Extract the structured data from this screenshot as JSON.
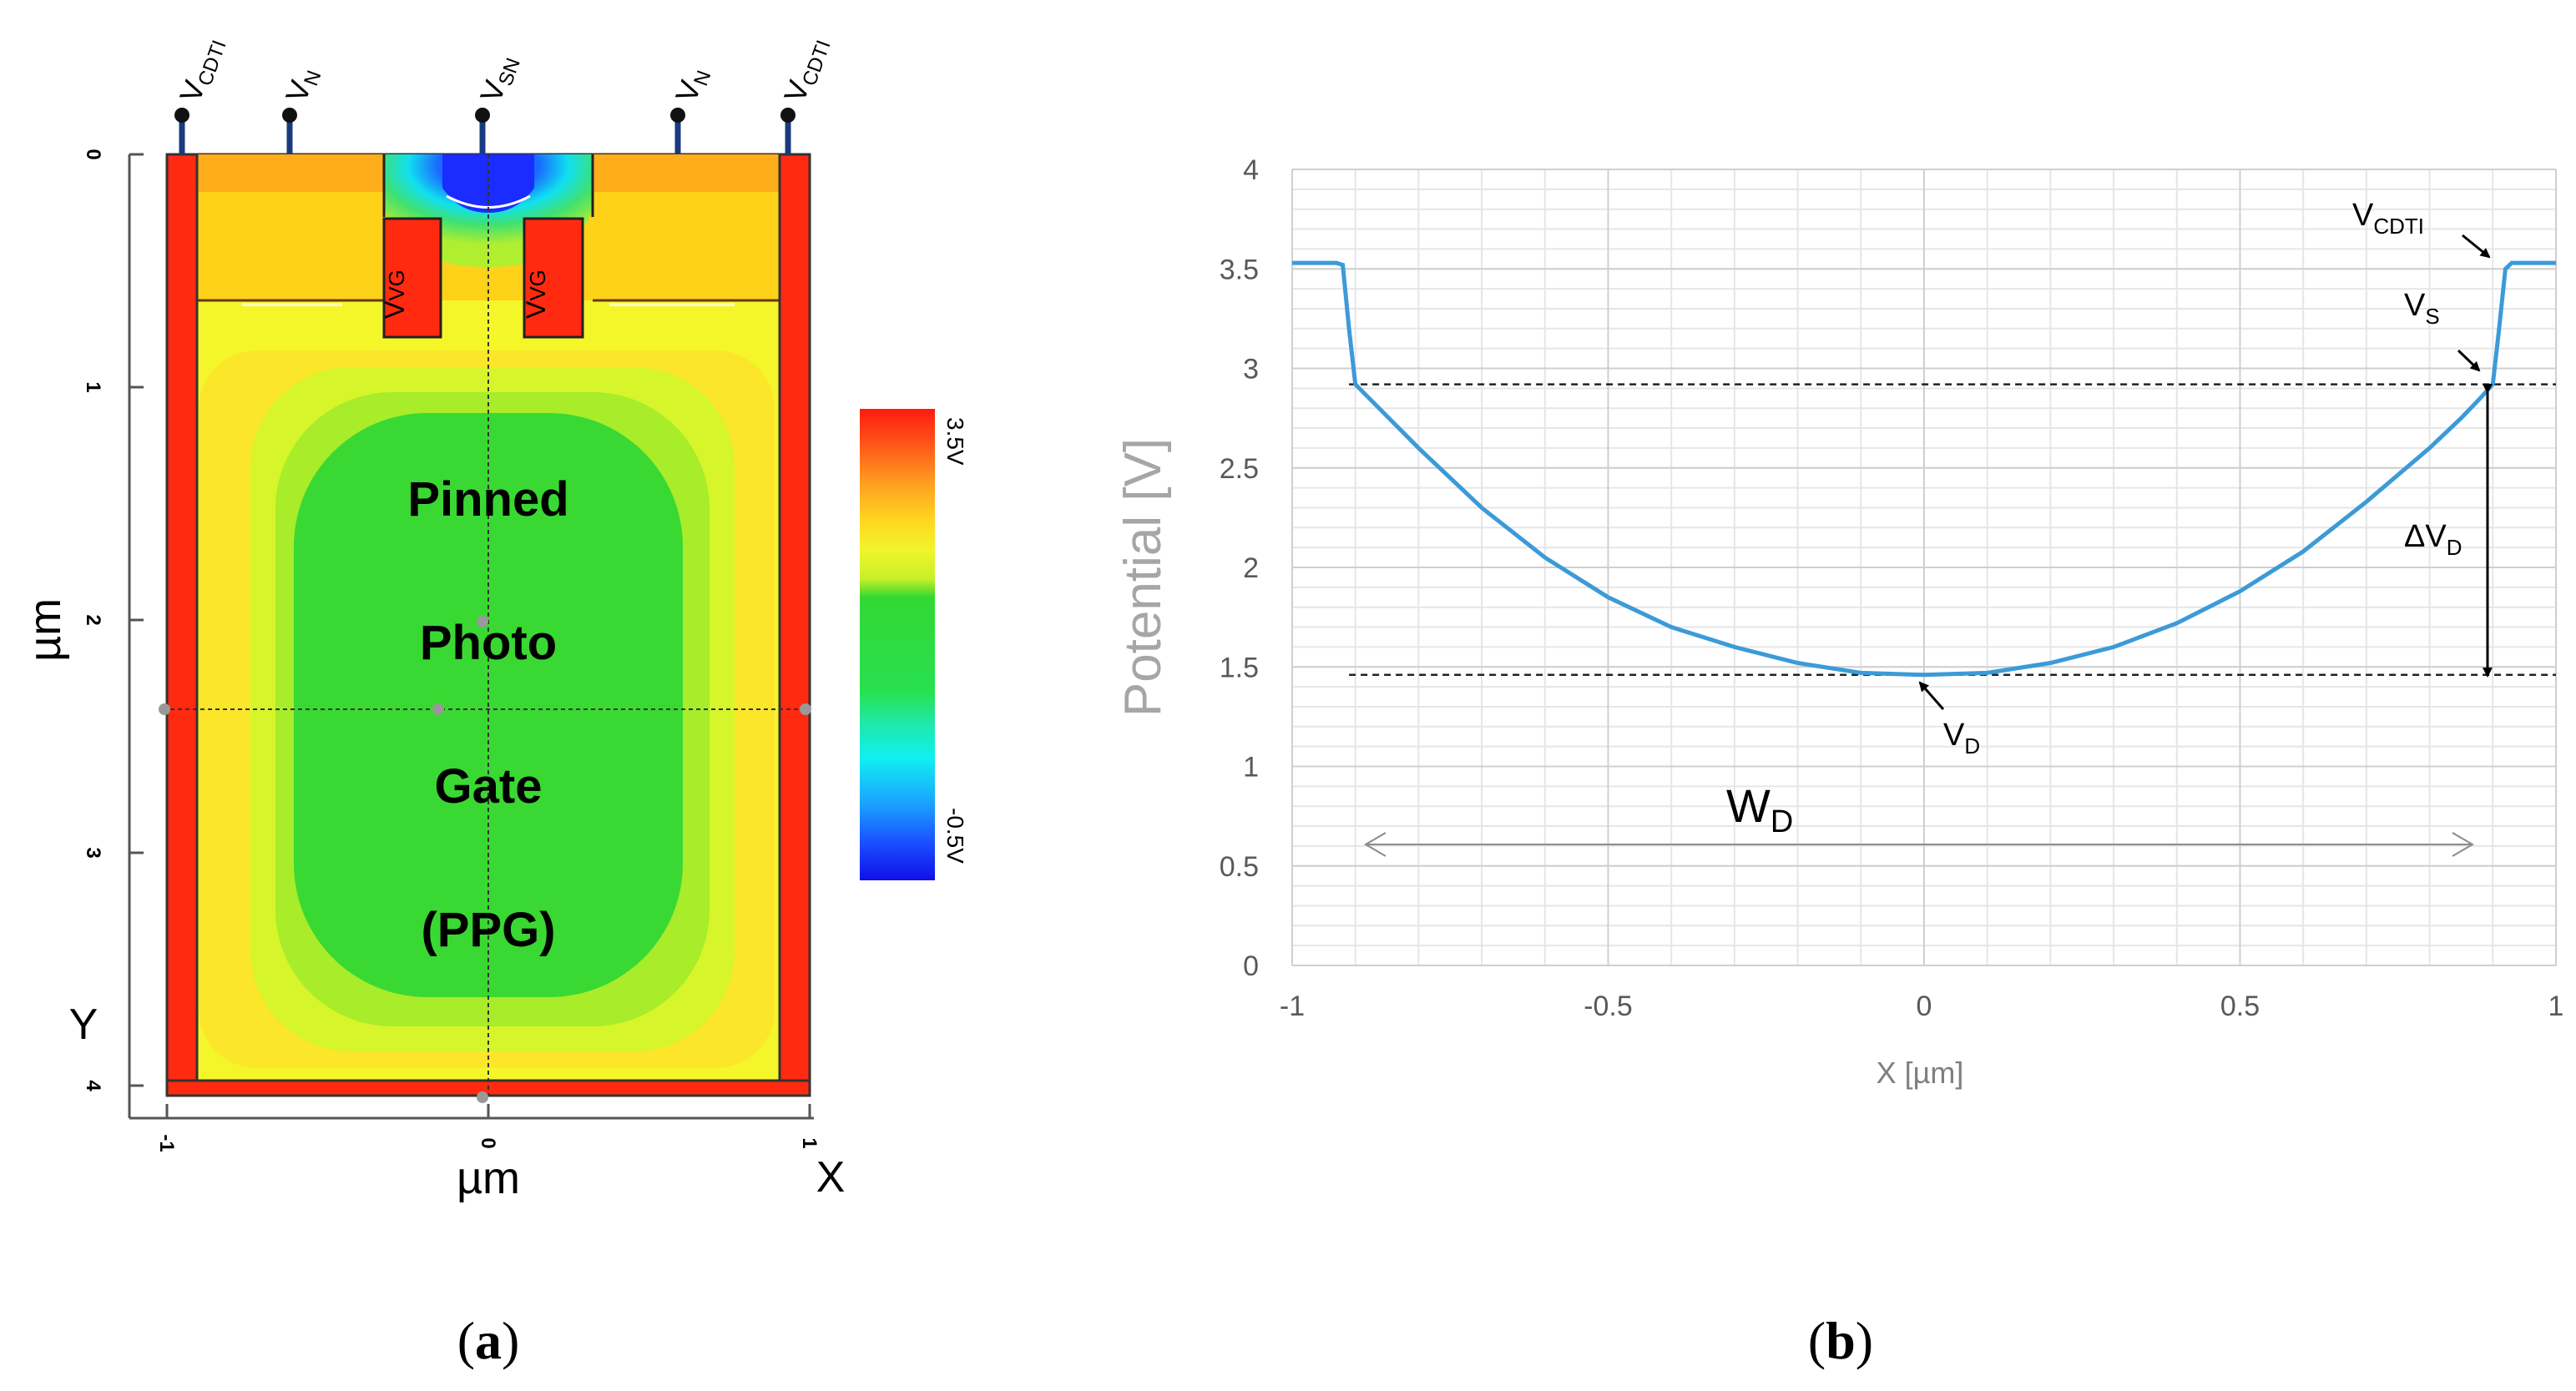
{
  "panel_a": {
    "caption_letter": "a",
    "region_label_lines": [
      "Pinned",
      "Photo",
      "Gate",
      "(PPG)"
    ],
    "y_axis_title": "µm",
    "y_axis_letter": "Y",
    "x_axis_title": "µm",
    "x_axis_letter": "X",
    "y_ticks": [
      "0",
      "1",
      "2",
      "3",
      "4"
    ],
    "x_ticks": [
      "-1",
      "0",
      "1"
    ],
    "contacts": [
      {
        "label": "V",
        "sub": "CDTI"
      },
      {
        "label": "V",
        "sub": "N"
      },
      {
        "label": "V",
        "sub": "SN"
      },
      {
        "label": "V",
        "sub": "N"
      },
      {
        "label": "V",
        "sub": "CDTI"
      }
    ],
    "gate_label": {
      "label": "V",
      "sub": "VG"
    },
    "colorbar": {
      "max_label": "3.5V",
      "min_label": "-0.5V"
    },
    "colors": {
      "trench": "#ff2a10",
      "surface": "#ffad1a",
      "layer_yellow": "#ffd21a",
      "bulk_yellow": "#f4f62a",
      "ring_light": "#d6f52a",
      "ring_mid": "#a8ec2a",
      "core_green": "#3ad832",
      "sn_blue": "#1a3cff"
    }
  },
  "panel_b": {
    "caption_letter": "b",
    "chart_data": {
      "type": "line",
      "title": "",
      "xlabel": "X [µm]",
      "ylabel": "Potential [V]",
      "xlim": [
        -1,
        1
      ],
      "ylim": [
        0,
        4
      ],
      "x_ticks": [
        "-1",
        "-0.5",
        "0",
        "0.5",
        "1"
      ],
      "y_ticks": [
        "0",
        "0.5",
        "1",
        "1.5",
        "2",
        "2.5",
        "3",
        "3.5",
        "4"
      ],
      "grid": true,
      "series": [
        {
          "name": "Potential",
          "color": "#3c9ad8",
          "x": [
            -1.0,
            -0.93,
            -0.92,
            -0.91,
            -0.9,
            -0.85,
            -0.8,
            -0.7,
            -0.6,
            -0.5,
            -0.4,
            -0.3,
            -0.2,
            -0.1,
            0.0,
            0.1,
            0.2,
            0.3,
            0.4,
            0.5,
            0.6,
            0.7,
            0.8,
            0.85,
            0.88,
            0.9,
            0.91,
            0.92,
            0.93,
            1.0
          ],
          "y": [
            3.53,
            3.53,
            3.52,
            3.2,
            2.92,
            2.76,
            2.6,
            2.3,
            2.05,
            1.85,
            1.7,
            1.6,
            1.52,
            1.47,
            1.46,
            1.47,
            1.52,
            1.6,
            1.72,
            1.88,
            2.08,
            2.33,
            2.6,
            2.75,
            2.85,
            2.92,
            3.2,
            3.5,
            3.53,
            3.53
          ]
        }
      ],
      "reference_lines": [
        {
          "label_main": "V",
          "label_sub": "S",
          "y": 2.92
        },
        {
          "label_main": "V",
          "label_sub": "D",
          "y": 1.46
        }
      ],
      "annotations": {
        "vcdti": {
          "main": "V",
          "sub": "CDTI"
        },
        "vs": {
          "main": "V",
          "sub": "S"
        },
        "delta_vd": {
          "main": "ΔV",
          "sub": "D"
        },
        "vd": {
          "main": "V",
          "sub": "D"
        },
        "wd": {
          "main": "W",
          "sub": "D"
        }
      }
    }
  }
}
